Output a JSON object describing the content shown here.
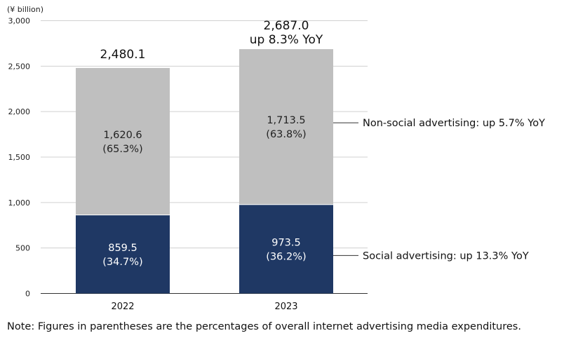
{
  "chart_data": {
    "type": "bar",
    "stacked": true,
    "unit_label": "(¥ billion)",
    "categories": [
      "2022",
      "2023"
    ],
    "ylim": [
      0,
      3000
    ],
    "y_ticks": [
      "0",
      "500",
      "1,000",
      "1,500",
      "2,000",
      "2,500",
      "3,000"
    ],
    "grid": true,
    "series": [
      {
        "name": "Social advertising",
        "color": "#1f3864",
        "label_color": "#ffffff",
        "values": [
          859.5,
          973.5
        ],
        "labels": [
          {
            "value": "859.5",
            "pct": "(34.7%)"
          },
          {
            "value": "973.5",
            "pct": "(36.2%)"
          }
        ]
      },
      {
        "name": "Non-social advertising",
        "color": "#bfbfbf",
        "label_color": "#222222",
        "values": [
          1620.6,
          1713.5
        ],
        "labels": [
          {
            "value": "1,620.6",
            "pct": "(65.3%)"
          },
          {
            "value": "1,713.5",
            "pct": "(63.8%)"
          }
        ]
      }
    ],
    "totals": [
      {
        "value": 2480.1,
        "label": "2,480.1",
        "growth": ""
      },
      {
        "value": 2687.0,
        "label": "2,687.0",
        "growth": "up 8.3% YoY"
      }
    ],
    "annotations": [
      {
        "series": 1,
        "text": "Non-social advertising: up 5.7% YoY"
      },
      {
        "series": 0,
        "text": "Social advertising: up 13.3% YoY"
      }
    ]
  },
  "footnote": "Note: Figures in parentheses are the percentages of overall internet advertising media expenditures."
}
